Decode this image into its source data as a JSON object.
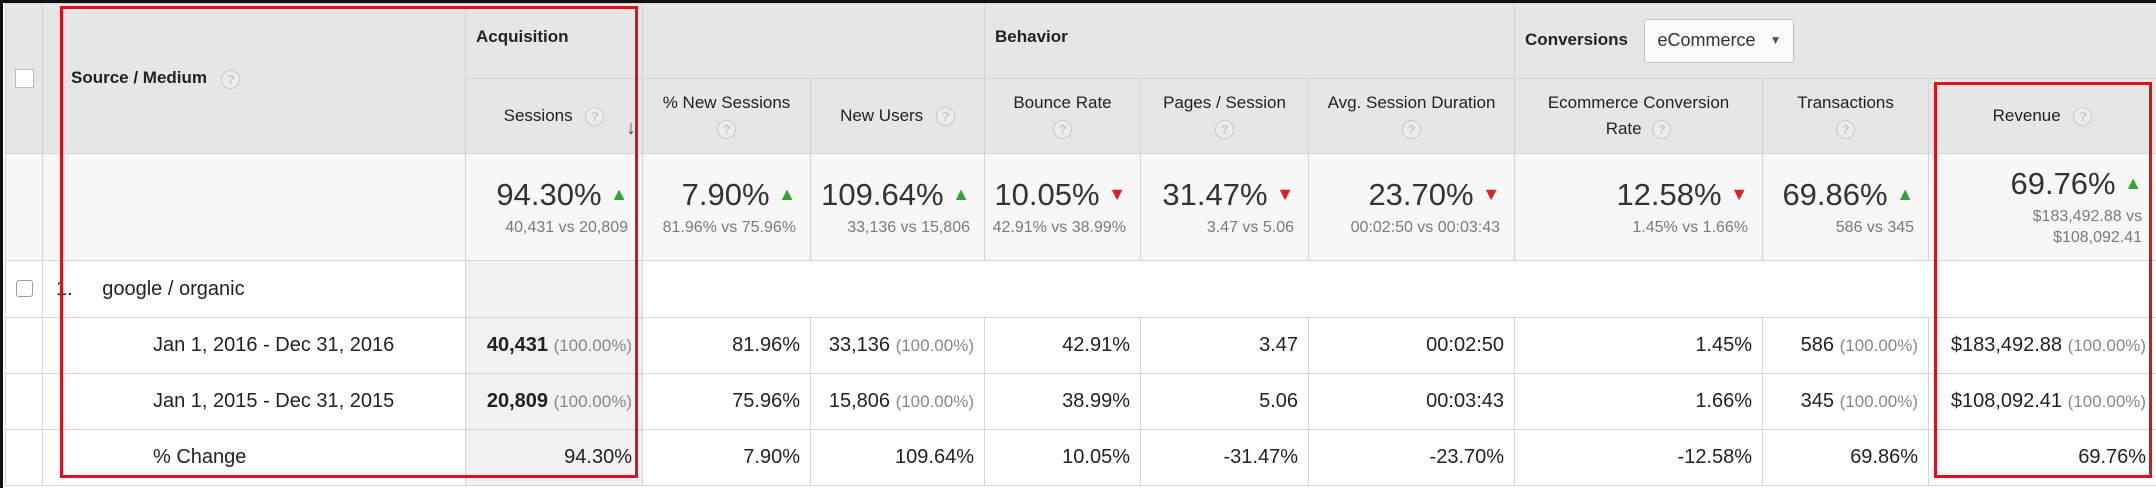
{
  "header": {
    "source_medium": "Source / Medium",
    "acquisition": "Acquisition",
    "behavior": "Behavior",
    "conversions": "Conversions",
    "conversions_dropdown": "eCommerce",
    "help_glyph": "?",
    "sort_glyph": "↓",
    "columns": [
      "Sessions",
      "% New Sessions",
      "New Users",
      "Bounce Rate",
      "Pages / Session",
      "Avg. Session Duration",
      "Ecommerce Conversion Rate",
      "Transactions",
      "Revenue"
    ]
  },
  "summary": [
    {
      "value": "94.30%",
      "dir": "up",
      "compare": "40,431 vs 20,809"
    },
    {
      "value": "7.90%",
      "dir": "up",
      "compare": "81.96% vs 75.96%"
    },
    {
      "value": "109.64%",
      "dir": "up",
      "compare": "33,136 vs 15,806"
    },
    {
      "value": "10.05%",
      "dir": "down",
      "compare": "42.91% vs 38.99%"
    },
    {
      "value": "31.47%",
      "dir": "down",
      "compare": "3.47 vs 5.06"
    },
    {
      "value": "23.70%",
      "dir": "down",
      "compare": "00:02:50 vs 00:03:43"
    },
    {
      "value": "12.58%",
      "dir": "down",
      "compare": "1.45% vs 1.66%"
    },
    {
      "value": "69.86%",
      "dir": "up",
      "compare": "586 vs 345"
    },
    {
      "value": "69.76%",
      "dir": "up",
      "compare": "$183,492.88 vs $108,092.41"
    }
  ],
  "row": {
    "index": "1.",
    "label": "google / organic"
  },
  "periods": [
    {
      "label": "Jan 1, 2016 - Dec 31, 2016",
      "sessions": "40,431",
      "sessions_pct": "(100.00%)",
      "new_sessions": "81.96%",
      "new_users": "33,136",
      "new_users_pct": "(100.00%)",
      "bounce_rate": "42.91%",
      "pages_session": "3.47",
      "avg_duration": "00:02:50",
      "conv_rate": "1.45%",
      "transactions": "586",
      "transactions_pct": "(100.00%)",
      "revenue": "$183,492.88",
      "revenue_pct": "(100.00%)"
    },
    {
      "label": "Jan 1, 2015 - Dec 31, 2015",
      "sessions": "20,809",
      "sessions_pct": "(100.00%)",
      "new_sessions": "75.96%",
      "new_users": "15,806",
      "new_users_pct": "(100.00%)",
      "bounce_rate": "38.99%",
      "pages_session": "5.06",
      "avg_duration": "00:03:43",
      "conv_rate": "1.66%",
      "transactions": "345",
      "transactions_pct": "(100.00%)",
      "revenue": "$108,092.41",
      "revenue_pct": "(100.00%)"
    }
  ],
  "change": {
    "label": "% Change",
    "values": [
      "94.30%",
      "7.90%",
      "109.64%",
      "10.05%",
      "-31.47%",
      "-23.70%",
      "-12.58%",
      "69.86%",
      "69.76%"
    ]
  },
  "colors": {
    "up": "#33a532",
    "down": "#e11d1d",
    "highlight": "#e0101a",
    "header_bg": "#e6e6e6"
  }
}
